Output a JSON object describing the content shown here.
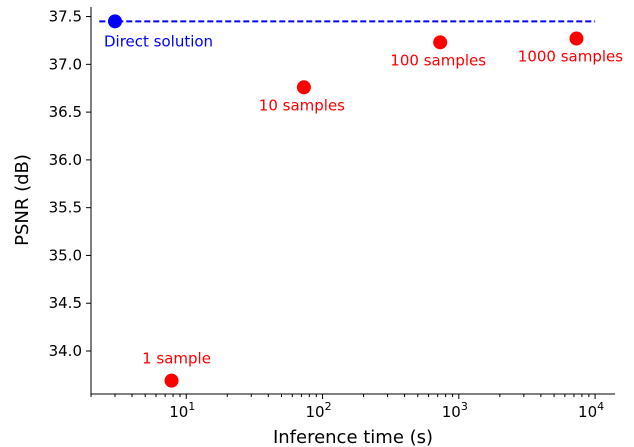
{
  "chart_data": {
    "type": "scatter",
    "xlabel": "Inference time (s)",
    "ylabel": "PSNR (dB)",
    "xscale": "log",
    "xlim": [
      2,
      14000
    ],
    "ylim": [
      33.55,
      37.6
    ],
    "grid": false,
    "y_ticks": [
      {
        "value": 34.0,
        "label": "34.0"
      },
      {
        "value": 34.5,
        "label": "34.5"
      },
      {
        "value": 35.0,
        "label": "35.0"
      },
      {
        "value": 35.5,
        "label": "35.5"
      },
      {
        "value": 36.0,
        "label": "36.0"
      },
      {
        "value": 36.5,
        "label": "36.5"
      },
      {
        "value": 37.0,
        "label": "37.0"
      },
      {
        "value": 37.5,
        "label": "37.5"
      }
    ],
    "x_ticks": [
      {
        "value": 10,
        "base": "10",
        "exp": "1"
      },
      {
        "value": 100,
        "base": "10",
        "exp": "2"
      },
      {
        "value": 1000,
        "base": "10",
        "exp": "3"
      },
      {
        "value": 10000,
        "base": "10",
        "exp": "4"
      }
    ],
    "reference": {
      "label": "Direct solution",
      "x": 3,
      "y": 37.45,
      "line_x_range": [
        2.3,
        10000
      ],
      "color": "#0000ff",
      "line_style": "dashed"
    },
    "points": [
      {
        "label": "1 sample",
        "x": 7.8,
        "y": 33.69,
        "color": "#ff0000"
      },
      {
        "label": "10 samples",
        "x": 73,
        "y": 36.76,
        "color": "#ff0000"
      },
      {
        "label": "100 samples",
        "x": 730,
        "y": 37.23,
        "color": "#ff0000"
      },
      {
        "label": "1000 samples",
        "x": 7300,
        "y": 37.27,
        "color": "#ff0000"
      }
    ]
  }
}
